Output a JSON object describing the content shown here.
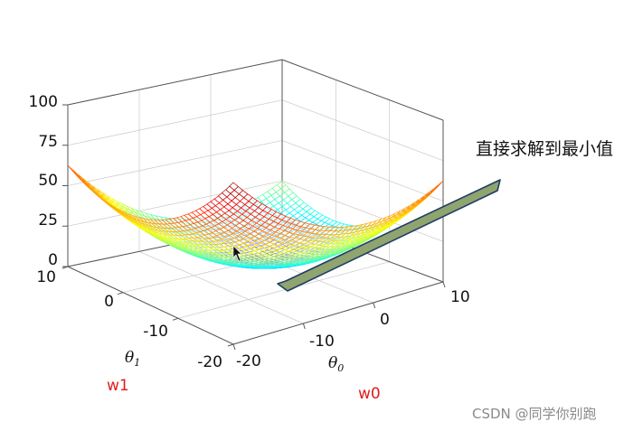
{
  "chart_data": {
    "type": "surface",
    "function": "z = (w0^2 + w1^2) / 8",
    "x_axis": {
      "symbol": "θ",
      "subscript": "0",
      "alias": "w0",
      "range": [
        -20,
        10
      ],
      "ticks": [
        "-20",
        "-10",
        "0",
        "10"
      ]
    },
    "y_axis": {
      "symbol": "θ",
      "subscript": "1",
      "alias": "w1",
      "range": [
        -20,
        10
      ],
      "ticks": [
        "-20",
        "-10",
        "0",
        "10"
      ]
    },
    "z_axis": {
      "range": [
        0,
        100
      ],
      "ticks": [
        "0",
        "25",
        "50",
        "75",
        "100"
      ]
    },
    "colormap": "jet",
    "grid": true,
    "minimum": {
      "w0": 0,
      "w1": 0,
      "z": 0
    }
  },
  "annotation": {
    "text": "直接求解到最小值",
    "arrow_color": "#7f9660"
  },
  "watermark": {
    "text": "CSDN @同学你别跑"
  }
}
